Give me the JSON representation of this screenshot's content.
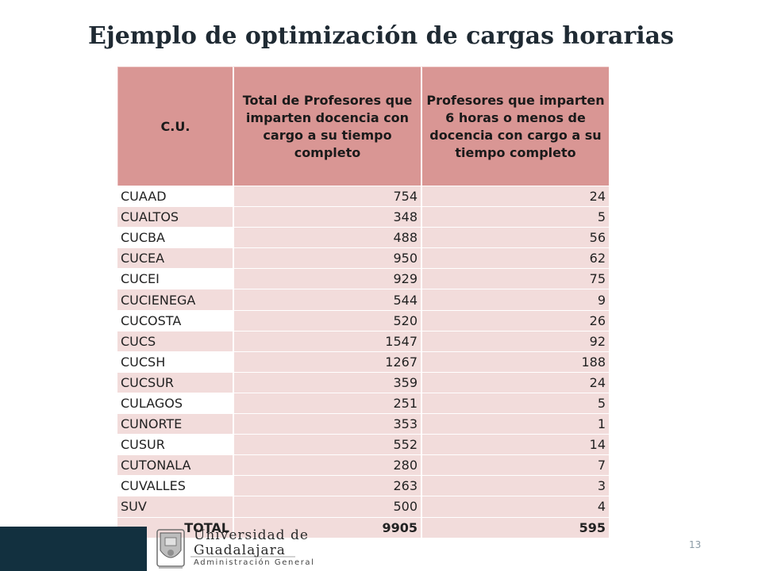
{
  "title": "Ejemplo de optimización de cargas horarias",
  "table": {
    "headers": [
      "C.U.",
      "Total de Profesores que imparten docencia con cargo a su tiempo completo",
      "Profesores que imparten 6 horas o menos de docencia con cargo a su tiempo completo"
    ],
    "rows": [
      {
        "cu": "CUAAD",
        "total": "754",
        "six": "24"
      },
      {
        "cu": "CUALTOS",
        "total": "348",
        "six": "5"
      },
      {
        "cu": "CUCBA",
        "total": "488",
        "six": "56"
      },
      {
        "cu": "CUCEA",
        "total": "950",
        "six": "62"
      },
      {
        "cu": "CUCEI",
        "total": "929",
        "six": "75"
      },
      {
        "cu": "CUCIENEGA",
        "total": "544",
        "six": "9"
      },
      {
        "cu": "CUCOSTA",
        "total": "520",
        "six": "26"
      },
      {
        "cu": "CUCS",
        "total": "1547",
        "six": "92"
      },
      {
        "cu": "CUCSH",
        "total": "1267",
        "six": "188"
      },
      {
        "cu": "CUCSUR",
        "total": "359",
        "six": "24"
      },
      {
        "cu": "CULAGOS",
        "total": "251",
        "six": "5"
      },
      {
        "cu": "CUNORTE",
        "total": "353",
        "six": "1"
      },
      {
        "cu": "CUSUR",
        "total": "552",
        "six": "14"
      },
      {
        "cu": "CUTONALA",
        "total": "280",
        "six": "7"
      },
      {
        "cu": "CUVALLES",
        "total": "263",
        "six": "3"
      },
      {
        "cu": "SUV",
        "total": "500",
        "six": "4"
      }
    ],
    "total": {
      "label": "TOTAL",
      "total": "9905",
      "six": "595"
    }
  },
  "logo": {
    "line1": "Universidad de",
    "line2": "Guadalajara",
    "line3": "Administración General"
  },
  "page_number": "13"
}
